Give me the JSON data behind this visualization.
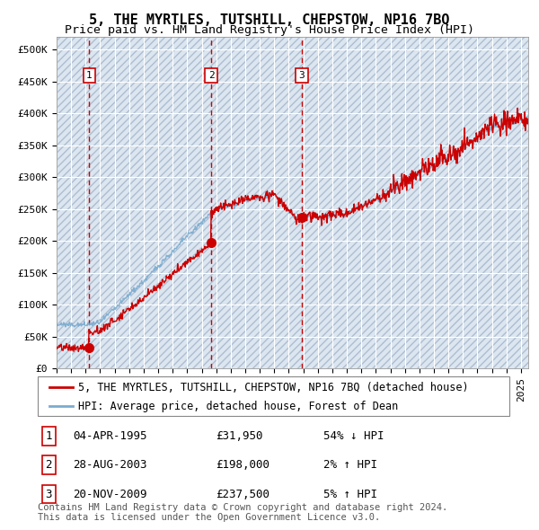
{
  "title": "5, THE MYRTLES, TUTSHILL, CHEPSTOW, NP16 7BQ",
  "subtitle": "Price paid vs. HM Land Registry's House Price Index (HPI)",
  "ylabel_ticks": [
    "£0",
    "£50K",
    "£100K",
    "£150K",
    "£200K",
    "£250K",
    "£300K",
    "£350K",
    "£400K",
    "£450K",
    "£500K"
  ],
  "ytick_vals": [
    0,
    50000,
    100000,
    150000,
    200000,
    250000,
    300000,
    350000,
    400000,
    450000,
    500000
  ],
  "ylim": [
    0,
    520000
  ],
  "xlim_start": 1993.0,
  "xlim_end": 2025.5,
  "sale_dates": [
    1995.25,
    2003.65,
    2009.9
  ],
  "sale_prices": [
    31950,
    198000,
    237500
  ],
  "sale_labels": [
    "1",
    "2",
    "3"
  ],
  "sale_date_strs": [
    "04-APR-1995",
    "28-AUG-2003",
    "20-NOV-2009"
  ],
  "sale_price_strs": [
    "£31,950",
    "£198,000",
    "£237,500"
  ],
  "sale_hpi_strs": [
    "54% ↓ HPI",
    "2% ↑ HPI",
    "5% ↑ HPI"
  ],
  "legend_red": "5, THE MYRTLES, TUTSHILL, CHEPSTOW, NP16 7BQ (detached house)",
  "legend_blue": "HPI: Average price, detached house, Forest of Dean",
  "footer": "Contains HM Land Registry data © Crown copyright and database right 2024.\nThis data is licensed under the Open Government Licence v3.0.",
  "plot_bg": "#dce6f0",
  "hatch_color": "#adbdd0",
  "grid_color": "#ffffff",
  "red_line_color": "#cc0000",
  "blue_line_color": "#7aabcf",
  "dot_color": "#cc0000",
  "dashed_color": "#cc0000",
  "box_edge_color": "#cc0000",
  "title_fontsize": 11,
  "subtitle_fontsize": 9.5,
  "tick_fontsize": 8,
  "legend_fontsize": 8.5,
  "table_fontsize": 9,
  "footer_fontsize": 7.5
}
